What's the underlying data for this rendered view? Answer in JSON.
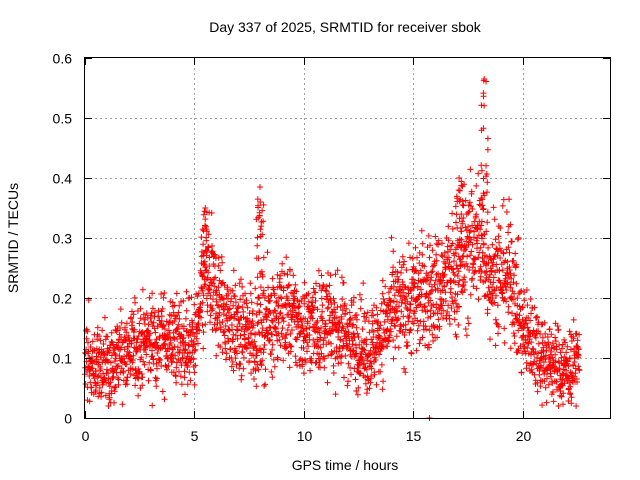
{
  "chart_data": {
    "type": "scatter",
    "title": "Day 337 of 2025, SRMTID for receiver sbok",
    "xlabel": "GPS time / hours",
    "ylabel": "SRMTID / TECUs",
    "xlim": [
      0,
      24
    ],
    "ylim": [
      0,
      0.6
    ],
    "xticks": [
      0,
      5,
      10,
      15,
      20
    ],
    "yticks": [
      0,
      0.1,
      0.2,
      0.3,
      0.4,
      0.5,
      0.6
    ],
    "xtick_labels": [
      "0",
      "5",
      "10",
      "15",
      "20"
    ],
    "ytick_labels": [
      "0",
      "0.1",
      "0.2",
      "0.3",
      "0.4",
      "0.5",
      "0.6"
    ],
    "grid": true,
    "marker": "+",
    "color": "#ff0000",
    "x_data_range_hours": [
      0,
      22.6
    ],
    "baseline_profile": {
      "hours": [
        0,
        1,
        2,
        3,
        4,
        5,
        5.5,
        6,
        7,
        8,
        9,
        10,
        11,
        12,
        13,
        14,
        15,
        16,
        17,
        17.5,
        18,
        18.5,
        19,
        19.5,
        20,
        20.5,
        21,
        22,
        22.6
      ],
      "median_srmtid": [
        0.09,
        0.09,
        0.11,
        0.13,
        0.13,
        0.12,
        0.23,
        0.2,
        0.14,
        0.15,
        0.18,
        0.15,
        0.16,
        0.14,
        0.11,
        0.17,
        0.2,
        0.21,
        0.24,
        0.28,
        0.3,
        0.25,
        0.24,
        0.24,
        0.14,
        0.13,
        0.1,
        0.08,
        0.1
      ]
    },
    "peaks": [
      {
        "hour": 5.5,
        "srmtid": 0.35
      },
      {
        "hour": 8.0,
        "srmtid": 0.385
      },
      {
        "hour": 17.1,
        "srmtid": 0.4
      },
      {
        "hour": 18.25,
        "srmtid": 0.565
      }
    ],
    "outliers": [
      {
        "hour": 12.4,
        "srmtid": 0.045
      },
      {
        "hour": 15.75,
        "srmtid": 0.0
      }
    ]
  }
}
